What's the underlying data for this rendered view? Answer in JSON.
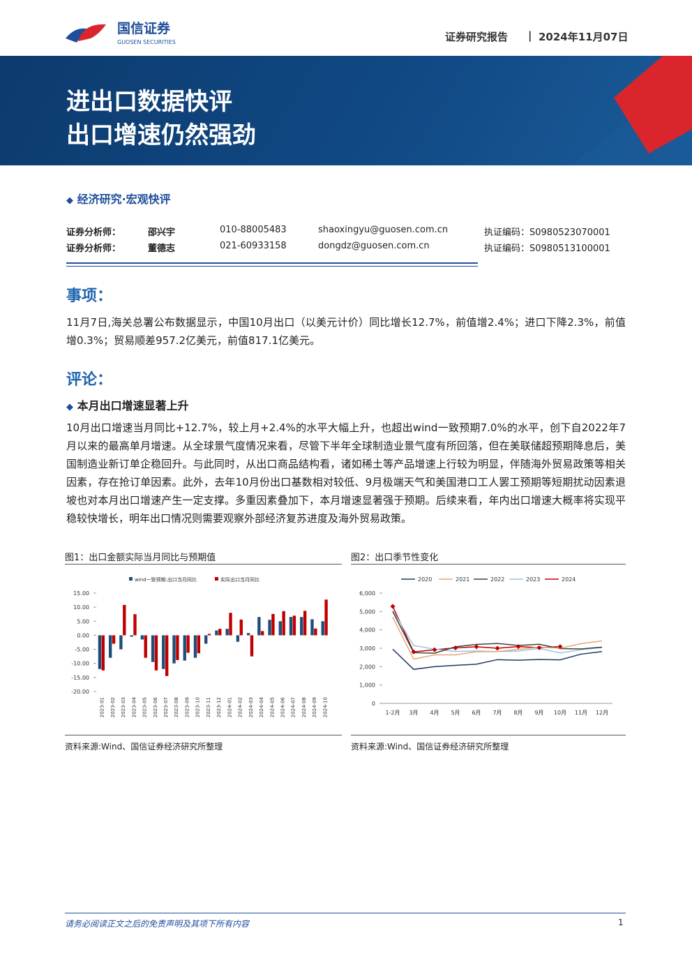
{
  "header": {
    "brand_cn": "国信证券",
    "brand_en": "GUOSEN SECURITIES",
    "report_type": "证券研究报告",
    "date": "2024年11月07日"
  },
  "banner": {
    "title_lines": [
      "进出口数据快评",
      "出口增速仍然强劲"
    ]
  },
  "category": "经济研究·宏观快评",
  "analysts": [
    [
      "证券分析师：",
      "邵兴宇",
      "010-88005483",
      "shaoxingyu@guosen.com.cn",
      "执证编码：S0980523070001"
    ],
    [
      "证券分析师：",
      "董德志",
      "021-60933158",
      "dongdz@guosen.com.cn",
      "执证编码：S0980513100001"
    ]
  ],
  "sections": [
    {
      "heading": "事项：",
      "paragraphs": [
        "11月7日,海关总署公布数据显示，中国10月出口（以美元计价）同比增长12.7%，前值增2.4%；进口下降2.3%，前值增0.3%；贸易顺差957.2亿美元，前值817.1亿美元。"
      ]
    },
    {
      "heading": "评论：",
      "subheading": "本月出口增速显著上升",
      "paragraphs": [
        "10月出口增速当月同比+12.7%，较上月+2.4%的水平大幅上升，也超出wind一致预期7.0%的水平，创下自2022年7月以来的最高单月增速。从全球景气度情况来看，尽管下半年全球制造业景气度有所回落，但在美联储超预期降息后，美国制造业新订单企稳回升。与此同时，从出口商品结构看，诸如稀土等产品增速上行较为明显，伴随海外贸易政策等相关因素，存在抢订单因素。此外，去年10月份出口基数相对较低、9月极端天气和美国港口工人罢工预期等短期扰动因素退坡也对本月出口增速产生一定支撑。多重因素叠加下，本月增速显著强于预期。后续来看，年内出口增速大概率将实现平稳较快增长，明年出口情况则需要观察外部经济复苏进度及海外贸易政策。"
      ]
    }
  ],
  "chart_data": [
    {
      "type": "bar",
      "title": "图1：出口金额实际当月同比与预期值",
      "source": "资料来源:Wind、国信证券经济研究所整理",
      "legend": "top",
      "categories": [
        "2023-01",
        "2023-02",
        "2023-03",
        "2023-04",
        "2023-05",
        "2023-06",
        "2023-07",
        "2023-08",
        "2023-09",
        "2023-10",
        "2023-11",
        "2023-12",
        "2024-01",
        "2024-02",
        "2024-03",
        "2024-04",
        "2024-05",
        "2024-06",
        "2024-07",
        "2024-08",
        "2024-09",
        "2024-10"
      ],
      "series": [
        {
          "name": "wind一致预期:出口当月同比",
          "color": "#1f4e79",
          "values": [
            -12,
            -8,
            -5,
            -0.5,
            -1.5,
            -9.5,
            -12,
            -10,
            -9,
            -8,
            -3,
            1.7,
            2.3,
            -2.3,
            0.8,
            6.5,
            5.5,
            5,
            6.5,
            6.5,
            5.7,
            5
          ]
        },
        {
          "name": "实际出口当月同比",
          "color": "#c00000",
          "values": [
            -12.5,
            -3,
            10.8,
            7.5,
            -8,
            -12.5,
            -14.5,
            -8.8,
            -6.2,
            -6.4,
            0.5,
            2.3,
            8,
            5.6,
            -7.5,
            1.5,
            7.6,
            8.6,
            7,
            8.7,
            2.4,
            12.7
          ]
        }
      ],
      "ylim": [
        -20,
        15
      ],
      "yticks": [
        {
          "value": 15,
          "label": "15.00"
        },
        {
          "value": 10,
          "label": "10.00"
        },
        {
          "value": 5,
          "label": "5.00"
        },
        {
          "value": 0,
          "label": "0.00"
        },
        {
          "value": -5,
          "label": "-5.00"
        },
        {
          "value": -10,
          "label": "-10.00"
        },
        {
          "value": -15,
          "label": "-15.00"
        },
        {
          "value": -20,
          "label": "-20.00"
        }
      ]
    },
    {
      "type": "line",
      "title": "图2：出口季节性变化",
      "source": "资料来源:Wind、国信证券经济研究所整理",
      "legend": "top",
      "categories": [
        "1-2月",
        "3月",
        "4月",
        "5月",
        "6月",
        "7月",
        "8月",
        "9月",
        "10月",
        "11月",
        "12月"
      ],
      "series": [
        {
          "name": "2020",
          "color": "#1f3864",
          "values": [
            2950,
            1850,
            2000,
            2070,
            2130,
            2380,
            2350,
            2390,
            2370,
            2680,
            2820
          ]
        },
        {
          "name": "2021",
          "color": "#e3a77a",
          "values": [
            4690,
            2410,
            2640,
            2640,
            2810,
            2820,
            2940,
            3060,
            3000,
            3250,
            3400
          ]
        },
        {
          "name": "2022",
          "color": "#404040",
          "values": [
            5000,
            2760,
            2730,
            3080,
            3210,
            3260,
            3150,
            3220,
            2980,
            2960,
            3060
          ]
        },
        {
          "name": "2023",
          "color": "#9dc3e6",
          "values": [
            5060,
            3150,
            2950,
            2830,
            2850,
            2820,
            2850,
            2990,
            2750,
            2920,
            3040
          ]
        },
        {
          "name": "2024",
          "color": "#c00000",
          "marker": "diamond",
          "values": [
            5280,
            2800,
            2920,
            3020,
            3080,
            3000,
            3090,
            3030,
            3090,
            null,
            null
          ]
        }
      ],
      "ylim": [
        0,
        6000
      ],
      "yticks": [
        0,
        {
          "value": 1000,
          "label": "1,000"
        },
        {
          "value": 2000,
          "label": "2,000"
        },
        {
          "value": 3000,
          "label": "3,000"
        },
        {
          "value": 4000,
          "label": "4,000"
        },
        {
          "value": 5000,
          "label": "5,000"
        },
        {
          "value": 6000,
          "label": "6,000"
        }
      ]
    }
  ],
  "footer": {
    "disclaimer": "请务必阅读正文之后的免责声明及其项下所有内容",
    "page": 1
  }
}
